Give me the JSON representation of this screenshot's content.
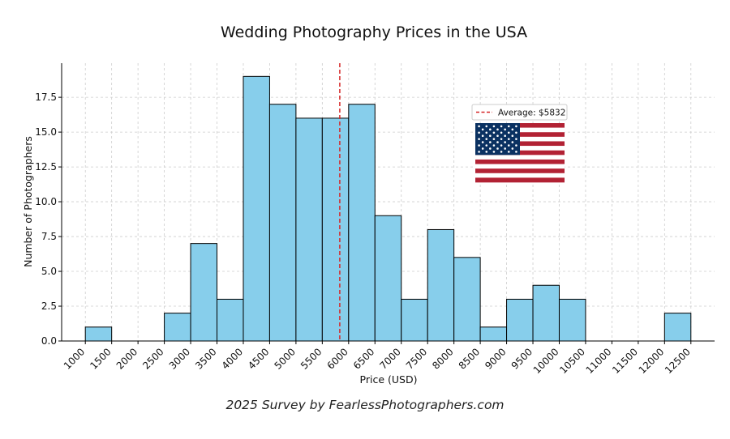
{
  "chart_data": {
    "type": "bar",
    "title": "Wedding Photography Prices in the USA",
    "xlabel": "Price (USD)",
    "ylabel": "Number of Photographers",
    "bin_edges": [
      1000,
      1500,
      2000,
      2500,
      3000,
      3500,
      4000,
      4500,
      5000,
      5500,
      6000,
      6500,
      7000,
      7500,
      8000,
      8500,
      9000,
      9500,
      10000,
      10500,
      11000,
      11500,
      12000,
      12500
    ],
    "x_ticks": [
      "1000",
      "1500",
      "2000",
      "2500",
      "3000",
      "3500",
      "4000",
      "4500",
      "5000",
      "5500",
      "6000",
      "6500",
      "7000",
      "7500",
      "8000",
      "8500",
      "9000",
      "9500",
      "10000",
      "10500",
      "11000",
      "11500",
      "12000",
      "12500"
    ],
    "values": [
      1,
      0,
      0,
      2,
      7,
      3,
      19,
      17,
      16,
      16,
      17,
      9,
      3,
      8,
      6,
      1,
      3,
      4,
      3,
      0,
      0,
      0,
      2
    ],
    "y_ticks": [
      "0.0",
      "2.5",
      "5.0",
      "7.5",
      "10.0",
      "12.5",
      "15.0",
      "17.5"
    ],
    "ylim": [
      0,
      19.95
    ],
    "xlim": [
      550,
      12950
    ],
    "average": 5832,
    "legend": [
      {
        "label": "Average: $5832",
        "style": "dashed",
        "color": "#d62728"
      }
    ],
    "legend_position": "upper-right",
    "bar_color": "#87ceeb",
    "bar_edge_color": "#000000",
    "grid": true
  },
  "footer": "2025 Survey by FearlessPhotographers.com",
  "flag": {
    "icon": "us-flag-icon",
    "red": "#b22234",
    "white": "#ffffff",
    "blue": "#0a3161"
  }
}
